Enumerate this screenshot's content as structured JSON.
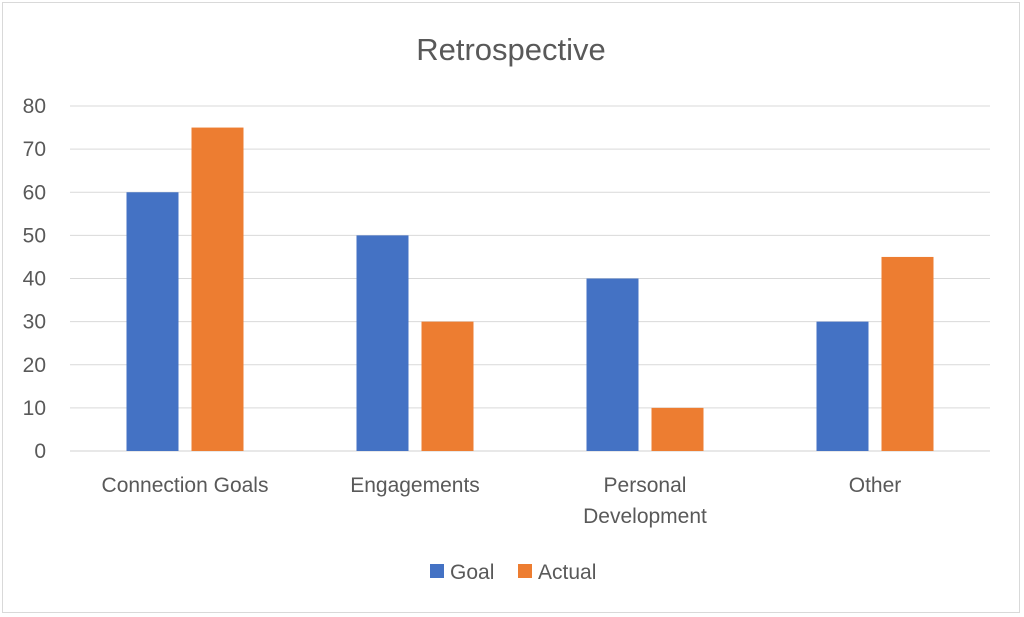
{
  "chart_data": {
    "type": "bar",
    "title": "Retrospective",
    "xlabel": "",
    "ylabel": "",
    "categories": [
      "Connection Goals",
      "Engagements",
      "Personal Development",
      "Other"
    ],
    "category_lines": [
      [
        "Connection Goals"
      ],
      [
        "Engagements"
      ],
      [
        "Personal",
        "Development"
      ],
      [
        "Other"
      ]
    ],
    "series": [
      {
        "name": "Goal",
        "color": "#4472c4",
        "values": [
          60,
          50,
          40,
          30
        ]
      },
      {
        "name": "Actual",
        "color": "#ed7d31",
        "values": [
          75,
          30,
          10,
          45
        ]
      }
    ],
    "ylim": [
      0,
      80
    ],
    "yticks": [
      0,
      10,
      20,
      30,
      40,
      50,
      60,
      70,
      80
    ],
    "grid": true,
    "legend": "bottom"
  }
}
